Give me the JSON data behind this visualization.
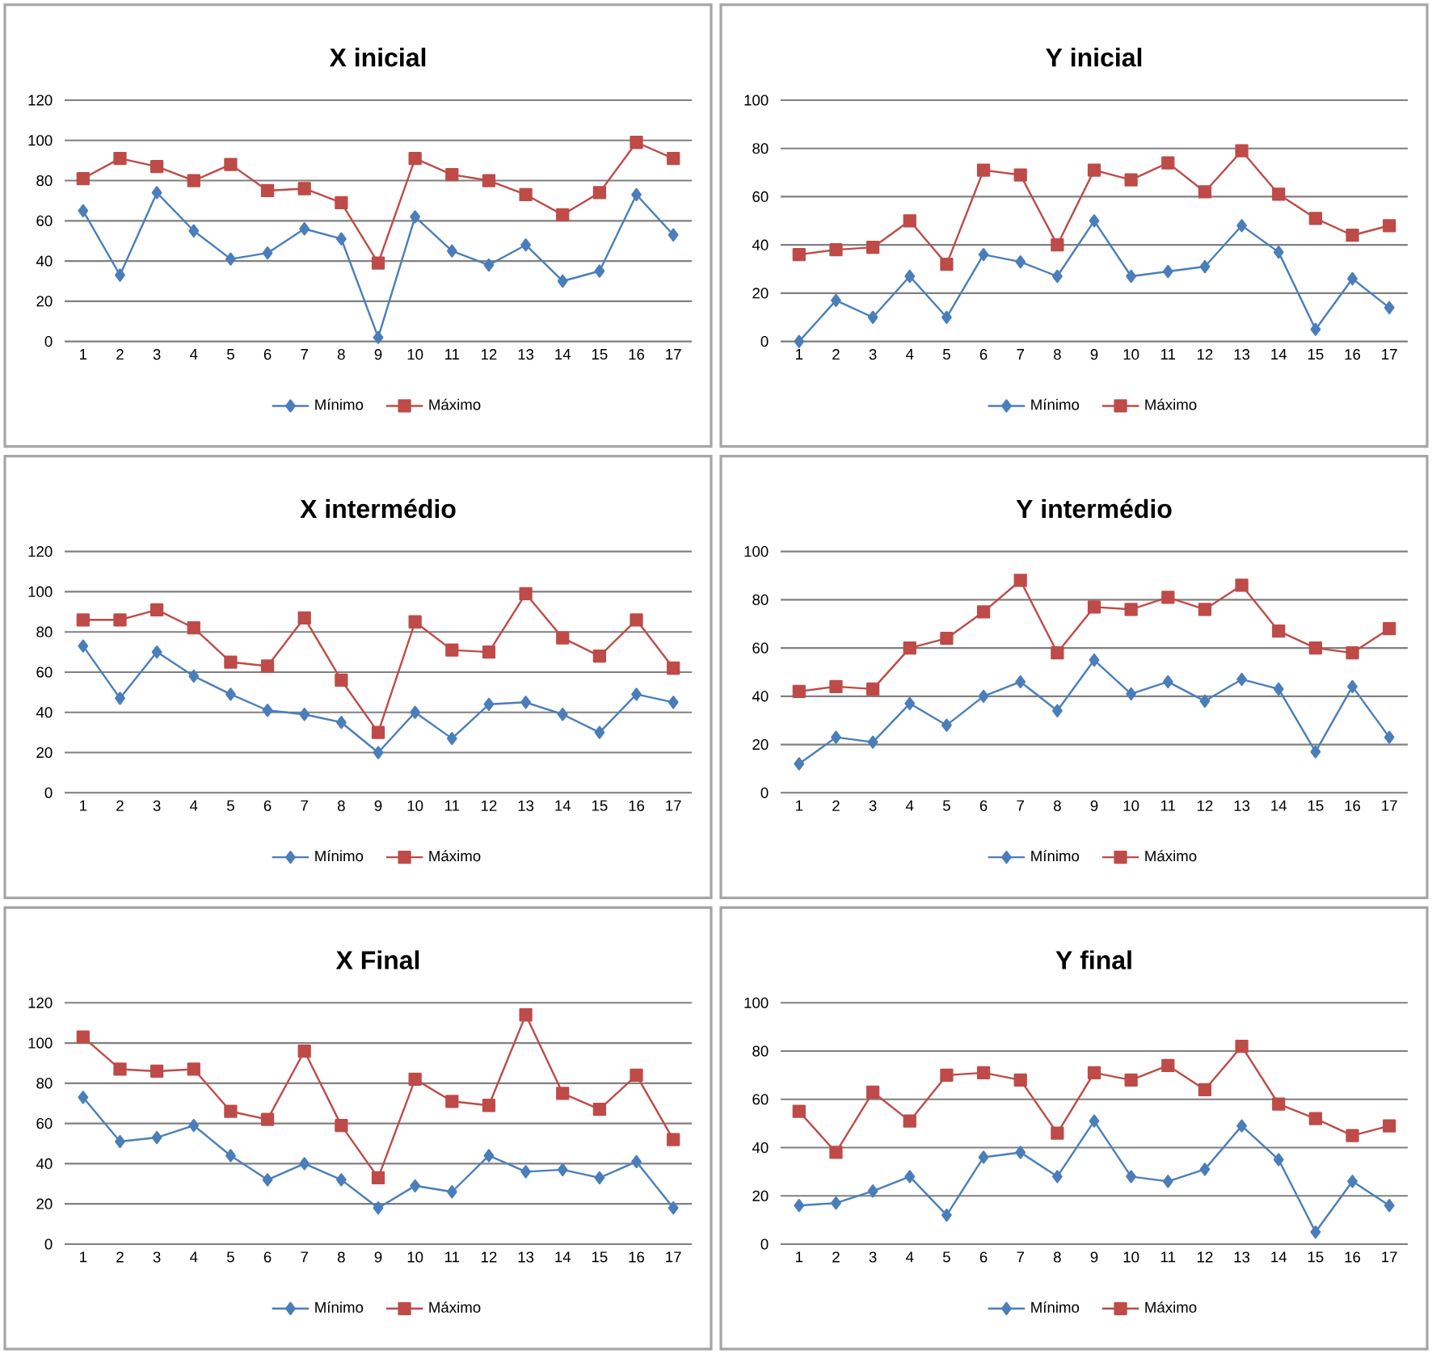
{
  "chart_data": [
    {
      "type": "line",
      "title": "X inicial",
      "categories": [
        "1",
        "2",
        "3",
        "4",
        "5",
        "6",
        "7",
        "8",
        "9",
        "10",
        "11",
        "12",
        "13",
        "14",
        "15",
        "16",
        "17"
      ],
      "ylim": [
        0,
        120
      ],
      "yticks": [
        0,
        20,
        40,
        60,
        80,
        100,
        120
      ],
      "grid": "y",
      "legend": "bottom",
      "line_style": "solid",
      "series": [
        {
          "name": "Mínimo",
          "color": "#4a7ebb",
          "marker": "diamond",
          "values": [
            65,
            33,
            74,
            55,
            41,
            44,
            56,
            51,
            2,
            62,
            45,
            38,
            48,
            30,
            35,
            73,
            53
          ]
        },
        {
          "name": "Máximo",
          "color": "#be4b48",
          "marker": "square",
          "values": [
            81,
            91,
            87,
            80,
            88,
            75,
            76,
            69,
            39,
            91,
            83,
            80,
            73,
            63,
            74,
            99,
            91
          ]
        }
      ]
    },
    {
      "type": "line",
      "title": "Y inicial",
      "categories": [
        "1",
        "2",
        "3",
        "4",
        "5",
        "6",
        "7",
        "8",
        "9",
        "10",
        "11",
        "12",
        "13",
        "14",
        "15",
        "16",
        "17"
      ],
      "ylim": [
        0,
        100
      ],
      "yticks": [
        0,
        20,
        40,
        60,
        80,
        100
      ],
      "grid": "y",
      "legend": "bottom",
      "line_style": "solid",
      "series": [
        {
          "name": "Mínimo",
          "color": "#4a7ebb",
          "marker": "diamond",
          "values": [
            0,
            17,
            10,
            27,
            10,
            36,
            33,
            27,
            50,
            27,
            29,
            31,
            48,
            37,
            5,
            26,
            14
          ]
        },
        {
          "name": "Máximo",
          "color": "#be4b48",
          "marker": "square",
          "values": [
            36,
            38,
            39,
            50,
            32,
            71,
            69,
            40,
            71,
            67,
            74,
            62,
            79,
            61,
            51,
            44,
            48
          ]
        }
      ]
    },
    {
      "type": "line",
      "title": "X intermédio",
      "categories": [
        "1",
        "2",
        "3",
        "4",
        "5",
        "6",
        "7",
        "8",
        "9",
        "10",
        "11",
        "12",
        "13",
        "14",
        "15",
        "16",
        "17"
      ],
      "ylim": [
        0,
        120
      ],
      "yticks": [
        0,
        20,
        40,
        60,
        80,
        100,
        120
      ],
      "grid": "y",
      "legend": "bottom",
      "line_style": "solid",
      "series": [
        {
          "name": "Mínimo",
          "color": "#4a7ebb",
          "marker": "diamond",
          "values": [
            73,
            47,
            70,
            58,
            49,
            41,
            39,
            35,
            20,
            40,
            27,
            44,
            45,
            39,
            30,
            49,
            45
          ]
        },
        {
          "name": "Máximo",
          "color": "#be4b48",
          "marker": "square",
          "values": [
            86,
            86,
            91,
            82,
            65,
            63,
            87,
            56,
            30,
            85,
            71,
            70,
            99,
            77,
            68,
            86,
            62
          ]
        }
      ]
    },
    {
      "type": "line",
      "title": "Y intermédio",
      "categories": [
        "1",
        "2",
        "3",
        "4",
        "5",
        "6",
        "7",
        "8",
        "9",
        "10",
        "11",
        "12",
        "13",
        "14",
        "15",
        "16",
        "17"
      ],
      "ylim": [
        0,
        100
      ],
      "yticks": [
        0,
        20,
        40,
        60,
        80,
        100
      ],
      "grid": "y",
      "legend": "bottom",
      "line_style": "solid",
      "series": [
        {
          "name": "Mínimo",
          "color": "#4a7ebb",
          "marker": "diamond",
          "values": [
            12,
            23,
            21,
            37,
            28,
            40,
            46,
            34,
            55,
            41,
            46,
            38,
            47,
            43,
            17,
            44,
            23
          ]
        },
        {
          "name": "Máximo",
          "color": "#be4b48",
          "marker": "square",
          "values": [
            42,
            44,
            43,
            60,
            64,
            75,
            88,
            58,
            77,
            76,
            81,
            76,
            86,
            67,
            60,
            58,
            68
          ]
        }
      ]
    },
    {
      "type": "line",
      "title": "X Final",
      "categories": [
        "1",
        "2",
        "3",
        "4",
        "5",
        "6",
        "7",
        "8",
        "9",
        "10",
        "11",
        "12",
        "13",
        "14",
        "15",
        "16",
        "17"
      ],
      "ylim": [
        0,
        120
      ],
      "yticks": [
        0,
        20,
        40,
        60,
        80,
        100,
        120
      ],
      "grid": "y",
      "legend": "bottom",
      "line_style": "solid",
      "series": [
        {
          "name": "Mínimo",
          "color": "#4a7ebb",
          "marker": "diamond",
          "values": [
            73,
            51,
            53,
            59,
            44,
            32,
            40,
            32,
            18,
            29,
            26,
            44,
            36,
            37,
            33,
            41,
            18
          ]
        },
        {
          "name": "Máximo",
          "color": "#be4b48",
          "marker": "square",
          "values": [
            103,
            87,
            86,
            87,
            66,
            62,
            96,
            59,
            33,
            82,
            71,
            69,
            114,
            75,
            67,
            84,
            52
          ]
        }
      ]
    },
    {
      "type": "line",
      "title": "Y final",
      "categories": [
        "1",
        "2",
        "3",
        "4",
        "5",
        "6",
        "7",
        "8",
        "9",
        "10",
        "11",
        "12",
        "13",
        "14",
        "15",
        "16",
        "17"
      ],
      "ylim": [
        0,
        100
      ],
      "yticks": [
        0,
        20,
        40,
        60,
        80,
        100
      ],
      "grid": "y",
      "legend": "bottom",
      "line_style": "solid",
      "series": [
        {
          "name": "Mínimo",
          "color": "#4a7ebb",
          "marker": "diamond",
          "values": [
            16,
            17,
            22,
            28,
            12,
            36,
            38,
            28,
            51,
            28,
            26,
            31,
            49,
            35,
            5,
            26,
            16
          ]
        },
        {
          "name": "Máximo",
          "color": "#be4b48",
          "marker": "square",
          "values": [
            55,
            38,
            63,
            51,
            70,
            71,
            68,
            46,
            71,
            68,
            74,
            64,
            82,
            58,
            52,
            45,
            49
          ]
        }
      ]
    }
  ]
}
